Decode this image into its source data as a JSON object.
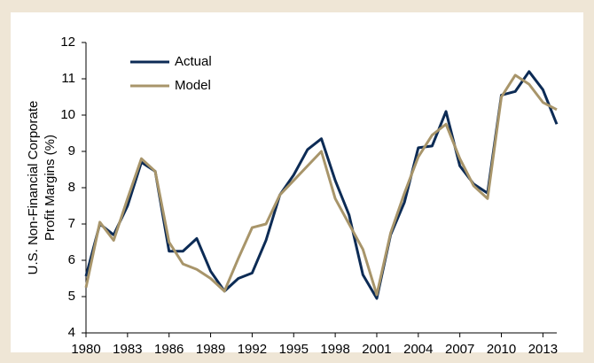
{
  "chart_data": {
    "type": "line",
    "y_label": [
      "U.S. Non-Financial Corporate",
      "Profit Margins (%)"
    ],
    "x": [
      1980,
      1981,
      1982,
      1983,
      1984,
      1985,
      1986,
      1987,
      1988,
      1989,
      1990,
      1991,
      1992,
      1993,
      1994,
      1995,
      1996,
      1997,
      1998,
      1999,
      2000,
      2001,
      2002,
      2003,
      2004,
      2005,
      2006,
      2007,
      2008,
      2009,
      2010,
      2011,
      2012,
      2013,
      2014
    ],
    "series": [
      {
        "name": "Actual",
        "color": "#0c2b55",
        "values": [
          5.56,
          7.0,
          6.7,
          7.5,
          8.7,
          8.45,
          6.25,
          6.25,
          6.6,
          5.7,
          5.15,
          5.5,
          5.65,
          6.55,
          7.8,
          8.35,
          9.05,
          9.35,
          8.2,
          7.25,
          5.6,
          4.95,
          6.7,
          7.6,
          9.1,
          9.15,
          10.1,
          8.6,
          8.1,
          7.85,
          10.55,
          10.65,
          11.2,
          10.7,
          9.75
        ]
      },
      {
        "name": "Model",
        "color": "#a8956a",
        "values": [
          5.25,
          7.05,
          6.55,
          7.7,
          8.8,
          8.45,
          6.5,
          5.9,
          5.75,
          5.5,
          5.15,
          6.05,
          6.9,
          7.0,
          7.8,
          8.2,
          8.6,
          9.0,
          7.7,
          7.0,
          6.3,
          5.05,
          6.75,
          7.85,
          8.85,
          9.45,
          9.75,
          8.8,
          8.05,
          7.7,
          10.5,
          11.1,
          10.85,
          10.35,
          10.15
        ]
      }
    ],
    "xlim": [
      1980,
      2014
    ],
    "xticks": [
      1980,
      1983,
      1986,
      1989,
      1992,
      1995,
      1998,
      2001,
      2004,
      2007,
      2010,
      2013
    ],
    "ylim": [
      4,
      12
    ],
    "yticks": [
      4,
      5,
      6,
      7,
      8,
      9,
      10,
      11,
      12
    ],
    "grid": false,
    "legend": "top-left"
  }
}
